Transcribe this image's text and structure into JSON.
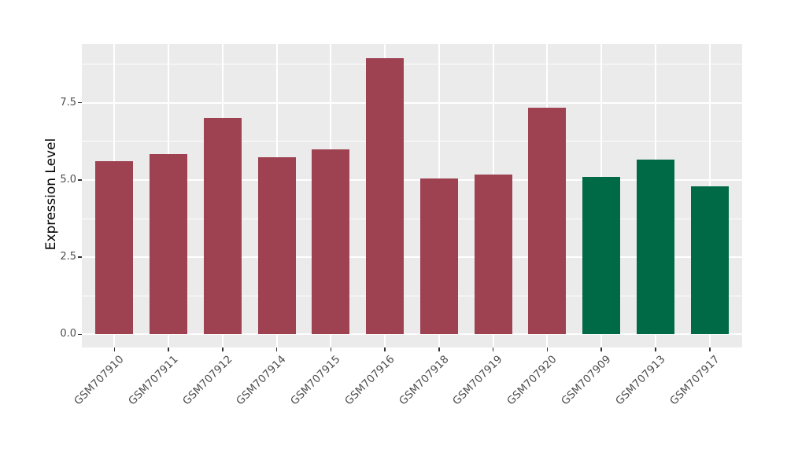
{
  "chart_data": {
    "type": "bar",
    "title": "",
    "xlabel": "",
    "ylabel": "Expression Level",
    "categories": [
      "GSM707910",
      "GSM707911",
      "GSM707912",
      "GSM707914",
      "GSM707915",
      "GSM707916",
      "GSM707918",
      "GSM707919",
      "GSM707920",
      "GSM707909",
      "GSM707913",
      "GSM707917"
    ],
    "values": [
      5.6,
      5.85,
      7.0,
      5.73,
      5.98,
      8.93,
      5.05,
      5.17,
      7.35,
      5.11,
      5.65,
      4.8
    ],
    "bar_groups": [
      "maroon",
      "maroon",
      "maroon",
      "maroon",
      "maroon",
      "maroon",
      "maroon",
      "maroon",
      "maroon",
      "green",
      "green",
      "green"
    ],
    "group_colors": {
      "maroon": "#9E4252",
      "green": "#006946"
    },
    "ylim": [
      -0.42,
      9.4
    ],
    "y_major_ticks": [
      0.0,
      2.5,
      5.0,
      7.5
    ],
    "y_major_tick_labels": [
      "0.0",
      "2.5",
      "5.0",
      "7.5"
    ],
    "y_minor_ticks": [
      1.25,
      3.75,
      6.25,
      8.75
    ],
    "grid": "on",
    "legend_position": "none",
    "panel_background": "#EBEBEB",
    "gridline_color": "#FFFFFF",
    "tick_mark_color": "#333333",
    "tick_label_color": "#4D4D4D",
    "axis_title_color": "#000000"
  }
}
